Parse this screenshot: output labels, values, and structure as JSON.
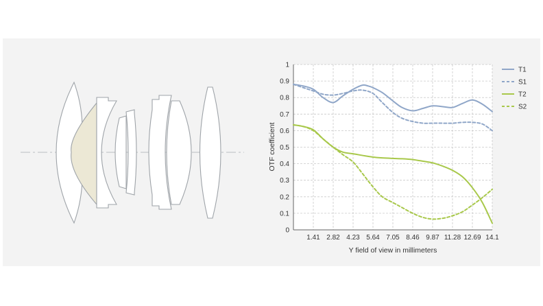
{
  "chart_data": {
    "type": "line",
    "title": "",
    "xlabel": "Y field of view in millimeters",
    "ylabel": "OTF coefficient",
    "xlim": [
      0,
      14.1
    ],
    "ylim": [
      0,
      1
    ],
    "x_ticks": [
      "1.41",
      "2.82",
      "4.23",
      "5.64",
      "7.05",
      "8.46",
      "9.87",
      "11.28",
      "12.69",
      "14.1"
    ],
    "x_tick_values": [
      1.41,
      2.82,
      4.23,
      5.64,
      7.05,
      8.46,
      9.87,
      11.28,
      12.69,
      14.1
    ],
    "y_ticks": [
      "0",
      "0.1",
      "0.2",
      "0.3",
      "0.4",
      "0.5",
      "0.6",
      "0.7",
      "0.8",
      "0.9",
      "1"
    ],
    "y_tick_values": [
      0,
      0.1,
      0.2,
      0.3,
      0.4,
      0.5,
      0.6,
      0.7,
      0.8,
      0.9,
      1
    ],
    "grid": true,
    "legend_position": "right",
    "series": [
      {
        "name": "T1",
        "color": "#8fa6c8",
        "dash": false,
        "x": [
          0,
          0.7,
          1.41,
          2.1,
          2.82,
          3.5,
          4.23,
          4.9,
          5.3,
          5.64,
          6.3,
          7.05,
          7.7,
          8.46,
          9.2,
          9.87,
          10.6,
          11.28,
          12.0,
          12.69,
          13.4,
          14.1
        ],
        "values": [
          0.88,
          0.87,
          0.85,
          0.8,
          0.77,
          0.81,
          0.85,
          0.875,
          0.87,
          0.86,
          0.83,
          0.78,
          0.74,
          0.72,
          0.735,
          0.75,
          0.745,
          0.74,
          0.765,
          0.785,
          0.76,
          0.715
        ]
      },
      {
        "name": "S1",
        "color": "#8fa6c8",
        "dash": true,
        "x": [
          0,
          0.7,
          1.41,
          2.1,
          2.82,
          3.5,
          4.23,
          4.9,
          5.64,
          6.3,
          7.05,
          7.7,
          8.46,
          9.2,
          9.87,
          10.6,
          11.28,
          12.0,
          12.69,
          13.4,
          14.1
        ],
        "values": [
          0.88,
          0.86,
          0.84,
          0.82,
          0.815,
          0.825,
          0.84,
          0.845,
          0.825,
          0.77,
          0.71,
          0.675,
          0.655,
          0.645,
          0.645,
          0.645,
          0.645,
          0.65,
          0.65,
          0.64,
          0.6
        ]
      },
      {
        "name": "T2",
        "color": "#a8c84a",
        "dash": false,
        "x": [
          0,
          0.7,
          1.41,
          2.1,
          2.82,
          3.5,
          4.23,
          4.9,
          5.64,
          6.3,
          7.05,
          7.7,
          8.46,
          9.2,
          9.87,
          10.6,
          11.28,
          12.0,
          12.69,
          13.4,
          14.1
        ],
        "values": [
          0.635,
          0.625,
          0.605,
          0.55,
          0.5,
          0.47,
          0.46,
          0.45,
          0.44,
          0.435,
          0.432,
          0.43,
          0.425,
          0.415,
          0.405,
          0.385,
          0.36,
          0.32,
          0.255,
          0.165,
          0.04
        ]
      },
      {
        "name": "S2",
        "color": "#a8c84a",
        "dash": true,
        "x": [
          0,
          0.7,
          1.41,
          2.1,
          2.82,
          3.5,
          4.23,
          4.9,
          5.64,
          6.3,
          7.05,
          7.7,
          8.46,
          9.2,
          9.87,
          10.6,
          11.28,
          12.0,
          12.69,
          13.4,
          14.1
        ],
        "values": [
          0.635,
          0.625,
          0.6,
          0.55,
          0.5,
          0.455,
          0.41,
          0.34,
          0.26,
          0.2,
          0.165,
          0.135,
          0.1,
          0.075,
          0.065,
          0.07,
          0.085,
          0.11,
          0.15,
          0.195,
          0.245
        ]
      }
    ]
  },
  "lens_diagram": {
    "glass_color": "#ffffff",
    "highlight_color": "#ece8d5",
    "outline_color": "#9ea3a8",
    "axis_color": "#b8bcc0"
  }
}
